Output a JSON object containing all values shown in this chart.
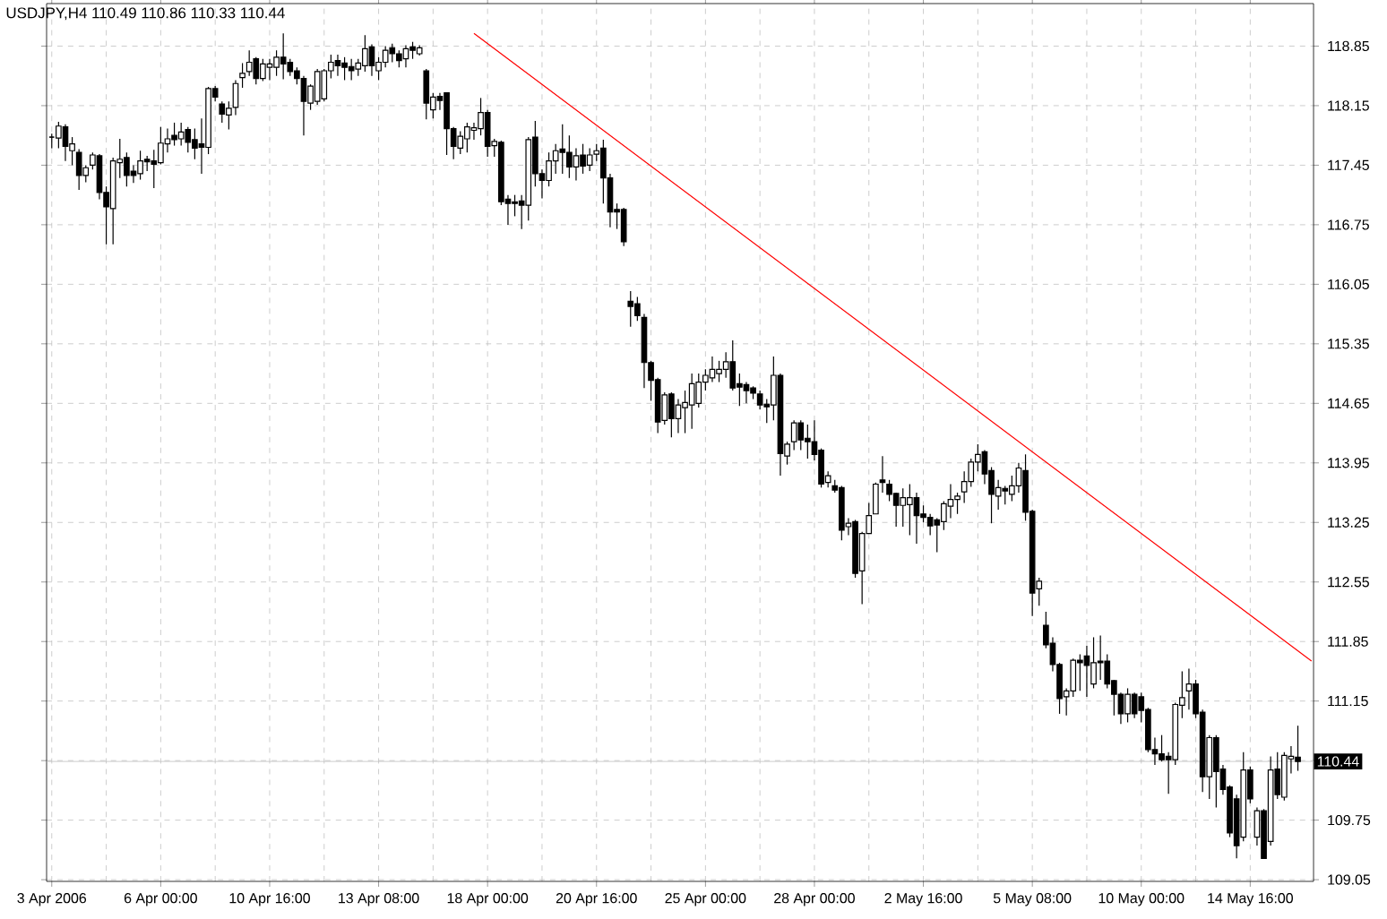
{
  "chart_data": {
    "type": "candlestick",
    "title": "USDJPY,H4 110.49 110.86 110.33 110.44",
    "categories": [
      "3 Apr 2006",
      null,
      null,
      null,
      null,
      null,
      null,
      null,
      null,
      null,
      null,
      null,
      null,
      null,
      null,
      null,
      "6 Apr 00:00",
      null,
      null,
      null,
      null,
      null,
      null,
      null,
      null,
      null,
      null,
      null,
      null,
      null,
      null,
      null,
      "10 Apr 16:00",
      null,
      null,
      null,
      null,
      null,
      null,
      null,
      null,
      null,
      null,
      null,
      null,
      null,
      null,
      null,
      "13 Apr 08:00",
      null,
      null,
      null,
      null,
      null,
      null,
      null,
      null,
      null,
      null,
      null,
      null,
      null,
      null,
      null,
      "18 Apr 00:00",
      null,
      null,
      null,
      null,
      null,
      null,
      null,
      null,
      null,
      null,
      null,
      null,
      null,
      null,
      null,
      "20 Apr 16:00",
      null,
      null,
      null,
      null,
      null,
      null,
      null,
      null,
      null,
      null,
      null,
      null,
      null,
      null,
      null,
      "25 Apr 00:00",
      null,
      null,
      null,
      null,
      null,
      null,
      null,
      null,
      null,
      null,
      null,
      null,
      null,
      null,
      null,
      "28 Apr 00:00",
      null,
      null,
      null,
      null,
      null,
      null,
      null,
      null,
      null,
      null,
      null,
      null,
      null,
      null,
      null,
      "2 May 16:00",
      null,
      null,
      null,
      null,
      null,
      null,
      null,
      null,
      null,
      null,
      null,
      null,
      null,
      null,
      null,
      "5 May 08:00",
      null,
      null,
      null,
      null,
      null,
      null,
      null,
      null,
      null,
      null,
      null,
      null,
      null,
      null,
      null,
      "10 May 00:00",
      null,
      null,
      null,
      null,
      null,
      null,
      null,
      null,
      null,
      null,
      null,
      null,
      null,
      null,
      null,
      "14 May 16:00",
      null,
      null,
      null,
      null,
      null,
      null,
      null,
      null,
      null
    ],
    "ohlc": [
      [
        117.78,
        117.82,
        117.65,
        117.78
      ],
      [
        117.77,
        117.96,
        117.65,
        117.91
      ],
      [
        117.9,
        117.93,
        117.5,
        117.67
      ],
      [
        117.62,
        117.78,
        117.45,
        117.7
      ],
      [
        117.6,
        117.64,
        117.16,
        117.33
      ],
      [
        117.33,
        117.45,
        117.25,
        117.42
      ],
      [
        117.45,
        117.6,
        117.4,
        117.57
      ],
      [
        117.56,
        117.58,
        117.05,
        117.13
      ],
      [
        117.13,
        117.2,
        116.52,
        116.96
      ],
      [
        116.94,
        117.54,
        116.52,
        117.5
      ],
      [
        117.48,
        117.76,
        117.3,
        117.52
      ],
      [
        117.54,
        117.6,
        117.2,
        117.33
      ],
      [
        117.38,
        117.45,
        117.24,
        117.33
      ],
      [
        117.35,
        117.62,
        117.28,
        117.5
      ],
      [
        117.52,
        117.56,
        117.38,
        117.49
      ],
      [
        117.5,
        117.63,
        117.18,
        117.46
      ],
      [
        117.48,
        117.9,
        117.46,
        117.71
      ],
      [
        117.7,
        117.88,
        117.6,
        117.76
      ],
      [
        117.8,
        117.95,
        117.68,
        117.75
      ],
      [
        117.76,
        117.95,
        117.68,
        117.84
      ],
      [
        117.87,
        117.9,
        117.6,
        117.72
      ],
      [
        117.75,
        117.88,
        117.52,
        117.65
      ],
      [
        117.7,
        118.0,
        117.35,
        117.66
      ],
      [
        117.66,
        118.37,
        117.58,
        118.35
      ],
      [
        118.35,
        118.38,
        118.2,
        118.25
      ],
      [
        118.17,
        118.2,
        117.95,
        118.05
      ],
      [
        118.04,
        118.2,
        117.87,
        118.12
      ],
      [
        118.13,
        118.45,
        118.04,
        118.41
      ],
      [
        118.48,
        118.65,
        118.36,
        118.53
      ],
      [
        118.55,
        118.8,
        118.5,
        118.66
      ],
      [
        118.7,
        118.72,
        118.4,
        118.47
      ],
      [
        118.47,
        118.7,
        118.44,
        118.64
      ],
      [
        118.6,
        118.7,
        118.45,
        118.64
      ],
      [
        118.6,
        118.8,
        118.5,
        118.72
      ],
      [
        118.72,
        119.0,
        118.46,
        118.64
      ],
      [
        118.66,
        118.7,
        118.5,
        118.55
      ],
      [
        118.56,
        118.6,
        118.4,
        118.47
      ],
      [
        118.47,
        118.5,
        117.8,
        118.2
      ],
      [
        118.18,
        118.4,
        118.1,
        118.38
      ],
      [
        118.2,
        118.58,
        118.16,
        118.55
      ],
      [
        118.23,
        118.58,
        118.2,
        118.56
      ],
      [
        118.56,
        118.75,
        118.47,
        118.66
      ],
      [
        118.68,
        118.75,
        118.5,
        118.62
      ],
      [
        118.65,
        118.72,
        118.45,
        118.6
      ],
      [
        118.61,
        118.7,
        118.45,
        118.56
      ],
      [
        118.58,
        118.7,
        118.5,
        118.65
      ],
      [
        118.62,
        118.98,
        118.55,
        118.82
      ],
      [
        118.84,
        118.87,
        118.5,
        118.62
      ],
      [
        118.56,
        118.72,
        118.45,
        118.66
      ],
      [
        118.66,
        118.85,
        118.6,
        118.8
      ],
      [
        118.83,
        118.88,
        118.66,
        118.76
      ],
      [
        118.76,
        118.8,
        118.6,
        118.68
      ],
      [
        118.7,
        118.86,
        118.6,
        118.82
      ],
      [
        118.84,
        118.9,
        118.7,
        118.8
      ],
      [
        118.76,
        118.86,
        118.74,
        118.83
      ],
      [
        118.56,
        118.58,
        117.99,
        118.18
      ],
      [
        118.1,
        118.3,
        118.0,
        118.25
      ],
      [
        118.26,
        118.3,
        118.1,
        118.21
      ],
      [
        118.3,
        118.3,
        117.57,
        117.88
      ],
      [
        117.88,
        117.9,
        117.52,
        117.67
      ],
      [
        117.65,
        117.85,
        117.58,
        117.79
      ],
      [
        117.76,
        117.95,
        117.6,
        117.9
      ],
      [
        117.86,
        117.95,
        117.75,
        117.89
      ],
      [
        117.88,
        118.24,
        117.8,
        118.07
      ],
      [
        118.07,
        118.1,
        117.55,
        117.67
      ],
      [
        117.68,
        117.76,
        117.55,
        117.73
      ],
      [
        117.72,
        117.74,
        116.98,
        117.02
      ],
      [
        117.05,
        117.1,
        116.75,
        117.0
      ],
      [
        117.02,
        117.1,
        116.85,
        117.0
      ],
      [
        117.03,
        117.1,
        116.7,
        116.98
      ],
      [
        116.98,
        117.78,
        116.8,
        117.75
      ],
      [
        117.78,
        117.97,
        117.2,
        117.35
      ],
      [
        117.35,
        117.4,
        117.06,
        117.27
      ],
      [
        117.27,
        117.6,
        117.2,
        117.5
      ],
      [
        117.5,
        117.7,
        117.35,
        117.62
      ],
      [
        117.64,
        117.93,
        117.35,
        117.6
      ],
      [
        117.6,
        117.8,
        117.3,
        117.43
      ],
      [
        117.43,
        117.65,
        117.27,
        117.56
      ],
      [
        117.57,
        117.7,
        117.35,
        117.44
      ],
      [
        117.45,
        117.65,
        117.38,
        117.57
      ],
      [
        117.58,
        117.7,
        117.5,
        117.62
      ],
      [
        117.65,
        117.75,
        117.0,
        117.3
      ],
      [
        117.3,
        117.35,
        116.72,
        116.9
      ],
      [
        116.93,
        117.0,
        116.7,
        116.9
      ],
      [
        116.93,
        116.95,
        116.5,
        116.55
      ],
      [
        115.85,
        115.97,
        115.55,
        115.79
      ],
      [
        115.82,
        115.9,
        115.62,
        115.68
      ],
      [
        115.66,
        115.7,
        114.83,
        115.13
      ],
      [
        115.13,
        115.15,
        114.68,
        114.92
      ],
      [
        114.93,
        114.95,
        114.3,
        114.43
      ],
      [
        114.45,
        114.78,
        114.4,
        114.75
      ],
      [
        114.76,
        114.78,
        114.25,
        114.47
      ],
      [
        114.47,
        114.7,
        114.3,
        114.63
      ],
      [
        114.6,
        114.8,
        114.3,
        114.66
      ],
      [
        114.63,
        115.0,
        114.35,
        114.88
      ],
      [
        114.65,
        115.0,
        114.6,
        114.9
      ],
      [
        114.9,
        115.05,
        114.8,
        114.98
      ],
      [
        114.95,
        115.2,
        114.9,
        115.05
      ],
      [
        115.0,
        115.15,
        114.9,
        115.05
      ],
      [
        115.05,
        115.25,
        114.95,
        115.14
      ],
      [
        115.14,
        115.39,
        114.8,
        114.83
      ],
      [
        114.88,
        115.0,
        114.62,
        114.84
      ],
      [
        114.87,
        114.9,
        114.65,
        114.8
      ],
      [
        114.83,
        114.85,
        114.7,
        114.77
      ],
      [
        114.76,
        114.8,
        114.58,
        114.63
      ],
      [
        114.64,
        114.7,
        114.42,
        114.61
      ],
      [
        114.63,
        115.2,
        114.45,
        114.98
      ],
      [
        114.98,
        115.0,
        113.8,
        114.06
      ],
      [
        114.03,
        114.2,
        113.93,
        114.17
      ],
      [
        114.2,
        114.45,
        114.1,
        114.42
      ],
      [
        114.42,
        114.45,
        114.1,
        114.22
      ],
      [
        114.24,
        114.4,
        114.0,
        114.2
      ],
      [
        114.2,
        114.45,
        113.98,
        114.05
      ],
      [
        114.1,
        114.12,
        113.66,
        113.7
      ],
      [
        113.72,
        113.85,
        113.66,
        113.8
      ],
      [
        113.68,
        113.75,
        113.6,
        113.63
      ],
      [
        113.66,
        113.68,
        113.04,
        113.16
      ],
      [
        113.2,
        113.3,
        113.1,
        113.24
      ],
      [
        113.26,
        113.28,
        112.6,
        112.65
      ],
      [
        112.68,
        113.14,
        112.29,
        113.12
      ],
      [
        113.12,
        113.48,
        113.12,
        113.33
      ],
      [
        113.35,
        113.72,
        113.35,
        113.7
      ],
      [
        113.75,
        114.03,
        113.6,
        113.72
      ],
      [
        113.7,
        113.75,
        113.5,
        113.58
      ],
      [
        113.59,
        113.6,
        113.2,
        113.45
      ],
      [
        113.45,
        113.65,
        113.2,
        113.54
      ],
      [
        113.46,
        113.7,
        113.1,
        113.54
      ],
      [
        113.54,
        113.6,
        113.0,
        113.33
      ],
      [
        113.35,
        113.45,
        113.25,
        113.31
      ],
      [
        113.31,
        113.35,
        113.1,
        113.21
      ],
      [
        113.28,
        113.3,
        112.9,
        113.22
      ],
      [
        113.26,
        113.5,
        113.16,
        113.47
      ],
      [
        113.44,
        113.7,
        113.3,
        113.52
      ],
      [
        113.52,
        113.6,
        113.35,
        113.56
      ],
      [
        113.61,
        113.85,
        113.48,
        113.73
      ],
      [
        113.73,
        114.0,
        113.67,
        113.96
      ],
      [
        113.96,
        114.17,
        113.85,
        114.05
      ],
      [
        114.08,
        114.1,
        113.7,
        113.82
      ],
      [
        113.86,
        113.9,
        113.24,
        113.58
      ],
      [
        113.56,
        113.75,
        113.4,
        113.66
      ],
      [
        113.65,
        113.68,
        113.46,
        113.62
      ],
      [
        113.58,
        113.8,
        113.5,
        113.68
      ],
      [
        113.68,
        113.95,
        113.6,
        113.89
      ],
      [
        113.86,
        114.05,
        113.27,
        113.37
      ],
      [
        113.38,
        113.4,
        112.15,
        112.42
      ],
      [
        112.47,
        112.6,
        112.27,
        112.56
      ],
      [
        112.04,
        112.2,
        111.77,
        111.81
      ],
      [
        111.83,
        111.9,
        111.5,
        111.58
      ],
      [
        111.58,
        111.6,
        111.0,
        111.18
      ],
      [
        111.2,
        111.3,
        110.98,
        111.27
      ],
      [
        111.27,
        111.65,
        111.2,
        111.63
      ],
      [
        111.63,
        111.7,
        111.27,
        111.6
      ],
      [
        111.68,
        111.8,
        111.2,
        111.57
      ],
      [
        111.35,
        111.9,
        111.3,
        111.6
      ],
      [
        111.62,
        111.92,
        111.4,
        111.6
      ],
      [
        111.62,
        111.7,
        111.3,
        111.35
      ],
      [
        111.39,
        111.4,
        110.98,
        111.23
      ],
      [
        111.23,
        111.25,
        110.88,
        111.0
      ],
      [
        111.0,
        111.3,
        110.9,
        111.23
      ],
      [
        111.23,
        111.25,
        110.95,
        111.0
      ],
      [
        111.2,
        111.25,
        110.9,
        111.04
      ],
      [
        111.05,
        111.07,
        110.55,
        110.58
      ],
      [
        110.58,
        110.72,
        110.4,
        110.53
      ],
      [
        110.53,
        110.75,
        110.44,
        110.46
      ],
      [
        110.5,
        110.55,
        110.06,
        110.46
      ],
      [
        110.46,
        111.13,
        110.4,
        111.11
      ],
      [
        111.1,
        111.5,
        110.95,
        111.19
      ],
      [
        111.27,
        111.53,
        111.05,
        111.35
      ],
      [
        111.35,
        111.4,
        110.95,
        111.0
      ],
      [
        111.02,
        111.05,
        110.08,
        110.26
      ],
      [
        110.26,
        110.75,
        110.0,
        110.72
      ],
      [
        110.72,
        110.75,
        109.9,
        110.32
      ],
      [
        110.35,
        110.4,
        110.05,
        110.11
      ],
      [
        110.14,
        110.16,
        109.55,
        109.6
      ],
      [
        110.0,
        110.05,
        109.3,
        109.45
      ],
      [
        109.55,
        110.55,
        109.5,
        110.34
      ],
      [
        110.34,
        110.38,
        109.95,
        110.0
      ],
      [
        109.55,
        109.9,
        109.45,
        109.86
      ],
      [
        109.86,
        109.88,
        109.3,
        109.3
      ],
      [
        109.5,
        110.5,
        109.45,
        110.34
      ],
      [
        110.35,
        110.55,
        110.0,
        110.05
      ],
      [
        110.02,
        110.55,
        109.98,
        110.51
      ],
      [
        110.47,
        110.62,
        110.3,
        110.5
      ],
      [
        110.49,
        110.86,
        110.33,
        110.44
      ],
      null,
      null
    ],
    "series": [
      {
        "type": "line",
        "color": "#ff0000",
        "values": [
          null,
          null,
          null,
          null,
          null,
          null,
          null,
          null,
          null,
          null,
          null,
          null,
          null,
          null,
          null,
          null,
          null,
          null,
          null,
          null,
          null,
          null,
          null,
          null,
          null,
          null,
          null,
          null,
          null,
          null,
          null,
          null,
          null,
          null,
          null,
          null,
          null,
          null,
          null,
          null,
          null,
          null,
          null,
          null,
          null,
          null,
          null,
          null,
          null,
          null,
          null,
          null,
          null,
          null,
          null,
          null,
          null,
          null,
          null,
          null,
          null,
          null,
          119.0,
          null,
          null,
          null,
          null,
          null,
          null,
          null,
          null,
          null,
          null,
          null,
          null,
          null,
          null,
          null,
          null,
          null,
          null,
          null,
          null,
          null,
          null,
          null,
          null,
          null,
          null,
          null,
          null,
          null,
          null,
          null,
          null,
          null,
          null,
          null,
          null,
          null,
          null,
          null,
          null,
          null,
          null,
          null,
          null,
          null,
          null,
          null,
          null,
          null,
          null,
          null,
          null,
          null,
          null,
          null,
          null,
          null,
          null,
          null,
          null,
          null,
          null,
          null,
          null,
          null,
          null,
          null,
          null,
          null,
          null,
          null,
          null,
          null,
          null,
          null,
          null,
          null,
          null,
          null,
          null,
          null,
          null,
          null,
          null,
          null,
          null,
          null,
          null,
          null,
          null,
          null,
          null,
          null,
          null,
          null,
          null,
          null,
          null,
          null,
          null,
          null,
          null,
          null,
          null,
          null,
          null,
          null,
          null,
          null,
          null,
          null,
          null,
          null,
          null,
          null,
          null,
          null,
          null,
          null,
          null,
          null,
          null,
          111.62
        ]
      }
    ],
    "ylim": [
      109.03,
      119.35
    ],
    "yticks": [
      109.05,
      109.75,
      {
        "value": 110.45,
        "label": null
      },
      111.15,
      111.85,
      112.55,
      113.25,
      113.95,
      114.65,
      115.35,
      116.05,
      116.75,
      117.45,
      118.15,
      118.85
    ],
    "ref_lines": [
      {
        "axis": "y",
        "value": 110.44,
        "label": "110.44",
        "color": "#c0c0c0"
      }
    ],
    "grid": true
  }
}
